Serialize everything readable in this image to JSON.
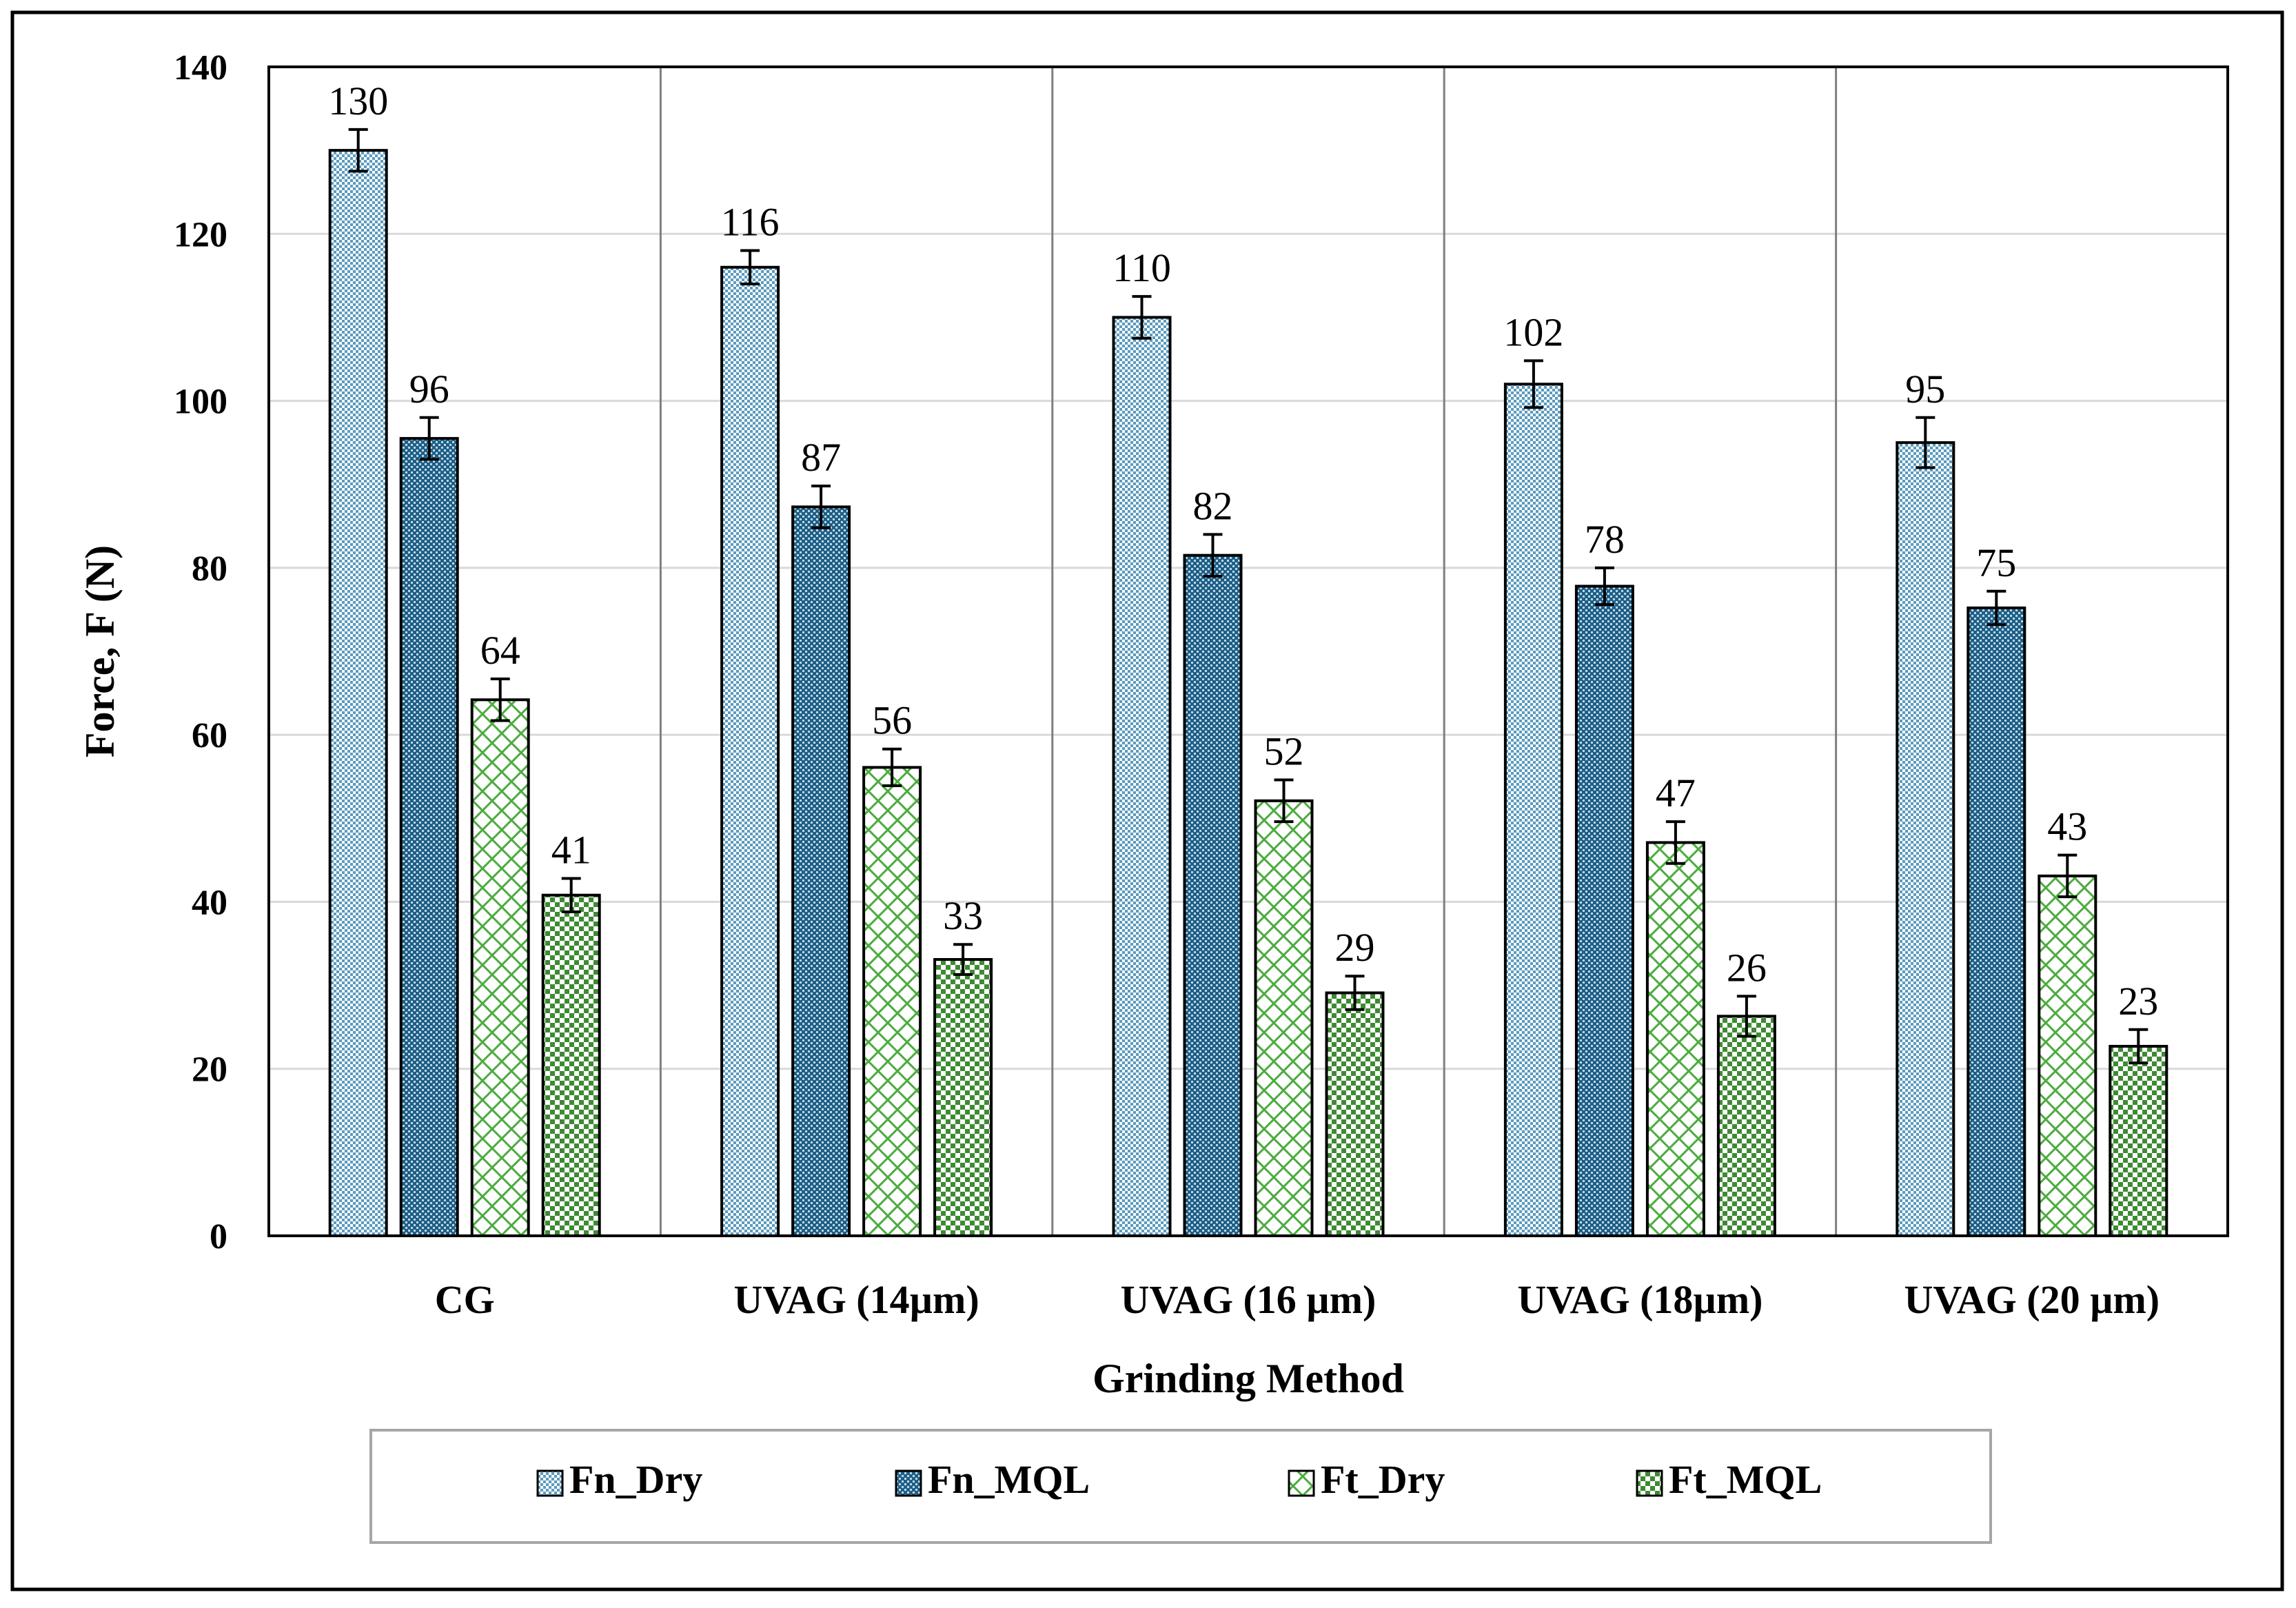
{
  "chart_data": {
    "type": "bar",
    "title": "",
    "xlabel": "Grinding Method",
    "ylabel": "Force, F (N)",
    "ylim": [
      0,
      140
    ],
    "yticks": [
      0,
      20,
      40,
      60,
      80,
      100,
      120,
      140
    ],
    "grid": true,
    "legend_position": "bottom",
    "categories": [
      "CG",
      "UVAG (14µm)",
      "UVAG (16 µm)",
      "UVAG (18µm)",
      "UVAG (20 µm)"
    ],
    "series": [
      {
        "name": "Fn_Dry",
        "values": [
          130,
          116,
          110,
          102,
          95
        ],
        "errors": [
          2.5,
          2.0,
          2.5,
          2.8,
          3.0
        ],
        "labels": [
          "130",
          "116",
          "110",
          "102",
          "95"
        ],
        "color": "#5a9bbf",
        "pattern": "fine-dots-light"
      },
      {
        "name": "Fn_MQL",
        "values": [
          95.5,
          87.3,
          81.5,
          77.8,
          75.2
        ],
        "errors": [
          2.5,
          2.5,
          2.5,
          2.2,
          2.0
        ],
        "labels": [
          "96",
          "87",
          "82",
          "78",
          "75"
        ],
        "color": "#1f5f86",
        "pattern": "fine-dots-dark"
      },
      {
        "name": "Ft_Dry",
        "values": [
          64.2,
          56.1,
          52.1,
          47.1,
          43.1
        ],
        "errors": [
          2.5,
          2.2,
          2.5,
          2.5,
          2.5
        ],
        "labels": [
          "64",
          "56",
          "52",
          "47",
          "43"
        ],
        "color": "#4cab3f",
        "pattern": "crosshatch"
      },
      {
        "name": "Ft_MQL",
        "values": [
          40.8,
          33.1,
          29.1,
          26.3,
          22.7
        ],
        "errors": [
          2.0,
          1.8,
          2.0,
          2.4,
          2.0
        ],
        "labels": [
          "41",
          "33",
          "29",
          "26",
          "23"
        ],
        "color": "#3e8a33",
        "pattern": "checker"
      }
    ]
  }
}
